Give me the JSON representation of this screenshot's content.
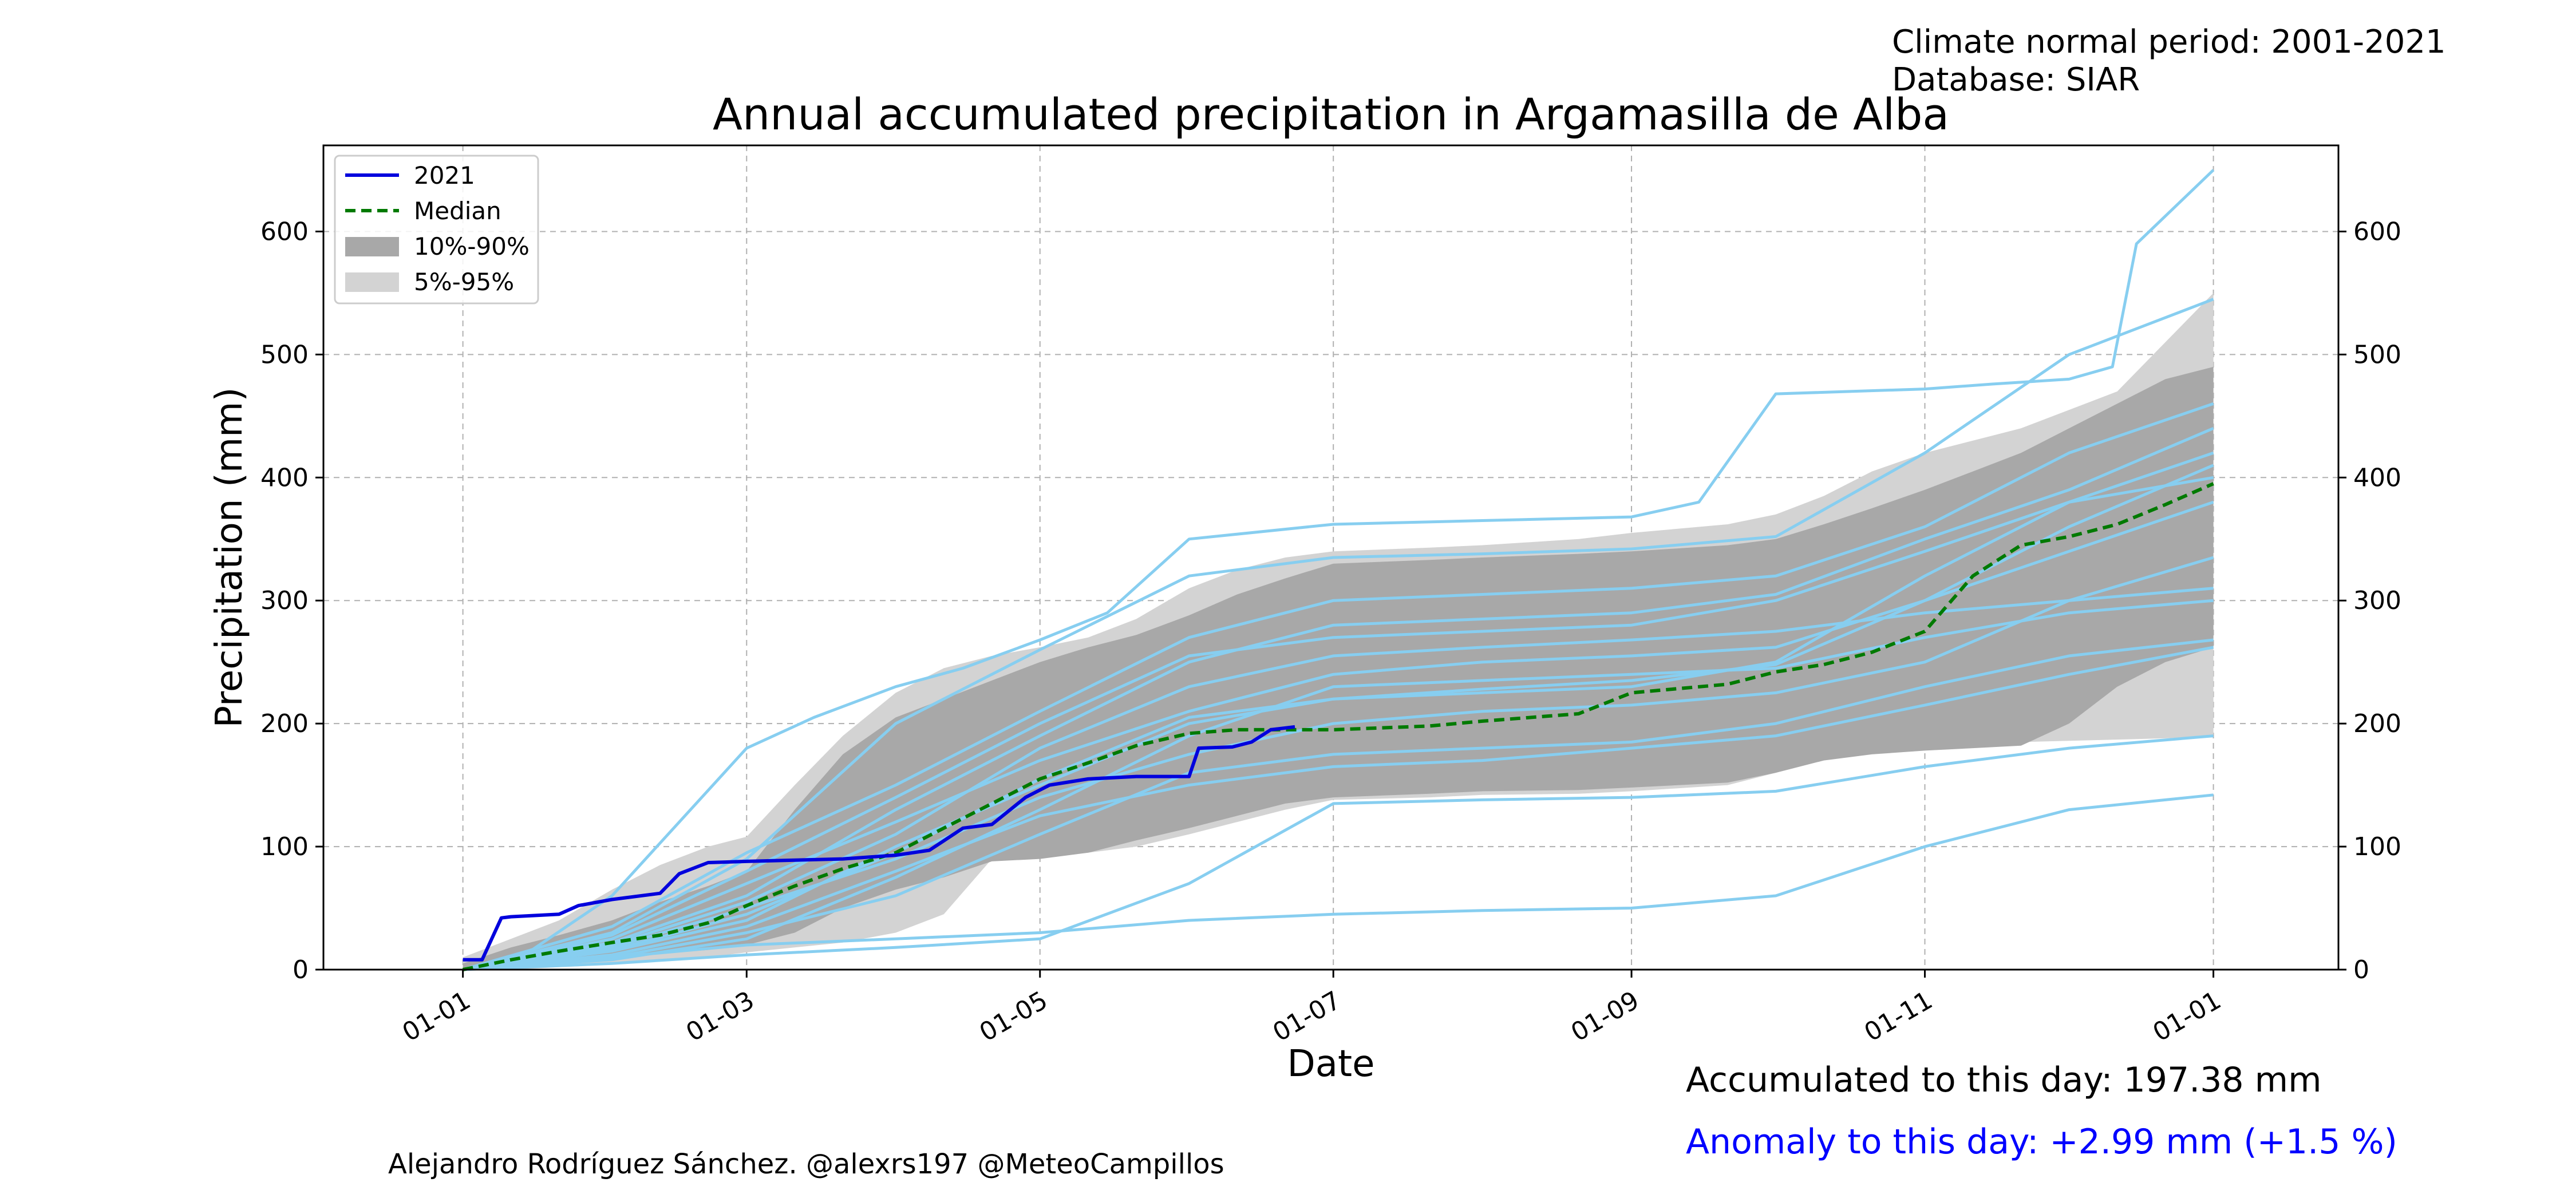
{
  "header": {
    "climate_period": "Climate normal period: 2001-2021",
    "database": "Database: SIAR"
  },
  "footer": {
    "accumulated": "Accumulated to this day: 197.38 mm",
    "anomaly": "Anomaly to this day: +2.99 mm (+1.5 %)",
    "author": "Alejandro Rodríguez Sánchez. @alexrs197 @MeteoCampillos"
  },
  "colors": {
    "current_year": "#0000dd",
    "median": "#007a00",
    "band_10_90": "#a8a8a8",
    "band_5_95": "#d3d3d3",
    "historical_years": "#87cef0",
    "anomaly_text": "#0000ff",
    "grid": "#b0b0b0"
  },
  "chart_data": {
    "type": "line",
    "title": "Annual accumulated precipitation in Argamasilla de Alba",
    "xlabel": "Date",
    "ylabel": "Precipitation (mm)",
    "x_ticks": [
      "01-01",
      "01-03",
      "01-05",
      "01-07",
      "01-09",
      "01-11",
      "01-01"
    ],
    "x_tick_dates": [
      "01-01",
      "03-01",
      "05-01",
      "07-01",
      "09-01",
      "11-01",
      "12-31"
    ],
    "y_ticks": [
      0,
      100,
      200,
      300,
      400,
      500,
      600
    ],
    "ylim": [
      0,
      670
    ],
    "xlim": [
      "12-03",
      "01-26"
    ],
    "grid": true,
    "right_axis": true,
    "legend_position": "upper-left",
    "legend": [
      "2021",
      "Median",
      "10%-90%",
      "5%-95%"
    ],
    "bands": [
      {
        "name": "5%-95%",
        "x": [
          "01-01",
          "01-11",
          "01-21",
          "02-01",
          "02-11",
          "02-21",
          "03-01",
          "03-11",
          "03-21",
          "04-01",
          "04-11",
          "04-21",
          "05-01",
          "05-11",
          "05-21",
          "06-01",
          "06-11",
          "06-21",
          "07-01",
          "07-21",
          "08-01",
          "08-21",
          "09-01",
          "09-21",
          "10-01",
          "10-11",
          "10-21",
          "11-01",
          "11-11",
          "11-21",
          "12-01",
          "12-11",
          "12-21",
          "12-31"
        ],
        "lower": [
          0,
          0,
          2,
          4,
          7,
          10,
          14,
          18,
          22,
          30,
          45,
          90,
          92,
          95,
          100,
          110,
          120,
          130,
          138,
          140,
          142,
          143,
          145,
          150,
          160,
          175,
          180,
          182,
          184,
          185,
          186,
          187,
          188,
          190
        ],
        "upper": [
          10,
          25,
          40,
          65,
          85,
          100,
          108,
          150,
          190,
          225,
          245,
          255,
          262,
          270,
          285,
          310,
          325,
          335,
          340,
          343,
          345,
          350,
          355,
          362,
          370,
          385,
          405,
          420,
          430,
          440,
          455,
          470,
          510,
          550
        ]
      },
      {
        "name": "10%-90%",
        "x": [
          "01-01",
          "01-11",
          "01-21",
          "02-01",
          "02-11",
          "02-21",
          "03-01",
          "03-11",
          "03-21",
          "04-01",
          "04-11",
          "04-21",
          "05-01",
          "05-11",
          "05-21",
          "06-01",
          "06-11",
          "06-21",
          "07-01",
          "07-21",
          "08-01",
          "08-21",
          "09-01",
          "09-21",
          "10-01",
          "10-11",
          "10-21",
          "11-01",
          "11-11",
          "11-21",
          "12-01",
          "12-11",
          "12-21",
          "12-31"
        ],
        "lower": [
          0,
          3,
          6,
          9,
          13,
          16,
          20,
          30,
          50,
          65,
          75,
          88,
          90,
          95,
          105,
          115,
          125,
          135,
          140,
          143,
          145,
          146,
          148,
          152,
          160,
          170,
          175,
          178,
          180,
          182,
          200,
          230,
          250,
          262
        ],
        "upper": [
          5,
          18,
          28,
          40,
          55,
          68,
          80,
          130,
          175,
          205,
          220,
          235,
          250,
          262,
          272,
          288,
          305,
          318,
          330,
          333,
          335,
          338,
          340,
          345,
          350,
          362,
          375,
          390,
          405,
          420,
          440,
          460,
          480,
          490
        ]
      }
    ],
    "series": [
      {
        "name": "2021",
        "x": [
          "01-01",
          "01-05",
          "01-07",
          "01-09",
          "01-11",
          "01-21",
          "01-25",
          "02-01",
          "02-11",
          "02-15",
          "02-21",
          "03-01",
          "03-11",
          "03-21",
          "04-01",
          "04-08",
          "04-15",
          "04-21",
          "04-28",
          "05-03",
          "05-11",
          "05-21",
          "06-01",
          "06-03",
          "06-10",
          "06-14",
          "06-18",
          "06-23"
        ],
        "values": [
          8,
          8,
          25,
          42,
          43,
          45,
          52,
          57,
          62,
          78,
          87,
          88,
          89,
          90,
          93,
          97,
          115,
          118,
          140,
          150,
          155,
          157,
          157,
          180,
          181,
          185,
          195,
          197.38
        ]
      },
      {
        "name": "Median",
        "x": [
          "01-01",
          "01-11",
          "01-21",
          "02-01",
          "02-11",
          "02-21",
          "03-01",
          "03-11",
          "03-21",
          "04-01",
          "04-11",
          "04-21",
          "05-01",
          "05-11",
          "05-21",
          "06-01",
          "06-11",
          "06-21",
          "07-01",
          "07-21",
          "08-01",
          "08-21",
          "09-01",
          "09-21",
          "10-01",
          "10-11",
          "10-21",
          "11-01",
          "11-11",
          "11-21",
          "12-01",
          "12-11",
          "12-21",
          "12-31"
        ],
        "values": [
          0,
          8,
          15,
          22,
          28,
          38,
          52,
          68,
          82,
          95,
          115,
          135,
          155,
          168,
          182,
          192,
          195,
          195,
          195,
          198,
          202,
          208,
          225,
          232,
          242,
          248,
          258,
          275,
          320,
          345,
          352,
          362,
          378,
          395
        ]
      }
    ],
    "historical_years": [
      {
        "x": [
          "01-01",
          "01-15",
          "02-01",
          "03-01",
          "03-15",
          "04-01",
          "04-15",
          "05-01",
          "05-15",
          "06-01",
          "07-01",
          "08-01",
          "09-01",
          "09-15",
          "10-01",
          "11-01",
          "11-15",
          "12-01",
          "12-10",
          "12-15",
          "12-31"
        ],
        "values": [
          0,
          15,
          60,
          180,
          205,
          230,
          245,
          268,
          290,
          350,
          362,
          365,
          368,
          380,
          468,
          472,
          476,
          480,
          490,
          590,
          650
        ]
      },
      {
        "x": [
          "01-01",
          "02-01",
          "03-01",
          "04-01",
          "05-01",
          "06-01",
          "07-01",
          "08-01",
          "09-01",
          "10-01",
          "11-01",
          "12-01",
          "12-31"
        ],
        "values": [
          0,
          10,
          20,
          25,
          30,
          40,
          45,
          48,
          50,
          60,
          100,
          130,
          142
        ]
      },
      {
        "x": [
          "01-01",
          "02-01",
          "03-01",
          "04-01",
          "05-01",
          "06-01",
          "07-01",
          "08-01",
          "09-01",
          "10-01",
          "11-01",
          "12-01",
          "12-31"
        ],
        "values": [
          0,
          30,
          90,
          200,
          260,
          320,
          335,
          338,
          342,
          352,
          420,
          500,
          545
        ]
      },
      {
        "x": [
          "01-01",
          "02-01",
          "03-01",
          "04-01",
          "05-01",
          "06-01",
          "07-01",
          "08-01",
          "09-01",
          "10-01",
          "11-01",
          "12-01",
          "12-31"
        ],
        "values": [
          0,
          5,
          12,
          18,
          25,
          70,
          135,
          138,
          140,
          145,
          165,
          180,
          190
        ]
      },
      {
        "x": [
          "01-01",
          "02-01",
          "03-01",
          "04-01",
          "05-01",
          "06-01",
          "07-01",
          "08-01",
          "09-01",
          "10-01",
          "11-01",
          "12-01",
          "12-31"
        ],
        "values": [
          0,
          20,
          55,
          110,
          180,
          230,
          255,
          262,
          268,
          275,
          290,
          300,
          310
        ]
      },
      {
        "x": [
          "01-01",
          "02-01",
          "03-01",
          "04-01",
          "05-01",
          "06-01",
          "07-01",
          "08-01",
          "09-01",
          "10-01",
          "11-01",
          "12-01",
          "12-31"
        ],
        "values": [
          0,
          15,
          40,
          100,
          150,
          200,
          220,
          225,
          230,
          250,
          320,
          380,
          420
        ]
      },
      {
        "x": [
          "01-01",
          "02-01",
          "03-01",
          "04-01",
          "05-01",
          "06-01",
          "07-01",
          "08-01",
          "09-01",
          "10-01",
          "11-01",
          "12-01",
          "12-31"
        ],
        "values": [
          0,
          25,
          70,
          120,
          170,
          210,
          240,
          250,
          255,
          262,
          300,
          340,
          380
        ]
      },
      {
        "x": [
          "01-01",
          "02-01",
          "03-01",
          "04-01",
          "05-01",
          "06-01",
          "07-01",
          "08-01",
          "09-01",
          "10-01",
          "11-01",
          "12-01",
          "12-31"
        ],
        "values": [
          0,
          10,
          30,
          60,
          110,
          160,
          175,
          180,
          185,
          200,
          230,
          255,
          268
        ]
      },
      {
        "x": [
          "01-01",
          "02-01",
          "03-01",
          "04-01",
          "05-01",
          "06-01",
          "07-01",
          "08-01",
          "09-01",
          "10-01",
          "11-01",
          "12-01",
          "12-31"
        ],
        "values": [
          0,
          35,
          95,
          150,
          210,
          270,
          300,
          305,
          310,
          320,
          360,
          420,
          460
        ]
      },
      {
        "x": [
          "01-01",
          "02-01",
          "03-01",
          "04-01",
          "05-01",
          "06-01",
          "07-01",
          "08-01",
          "09-01",
          "10-01",
          "11-01",
          "12-01",
          "12-31"
        ],
        "values": [
          0,
          18,
          50,
          90,
          140,
          175,
          200,
          210,
          215,
          225,
          250,
          300,
          335
        ]
      },
      {
        "x": [
          "01-01",
          "02-01",
          "03-01",
          "04-01",
          "05-01",
          "06-01",
          "07-01",
          "08-01",
          "09-01",
          "10-01",
          "11-01",
          "12-01",
          "12-31"
        ],
        "values": [
          0,
          8,
          25,
          75,
          130,
          190,
          230,
          235,
          240,
          245,
          270,
          290,
          300
        ]
      },
      {
        "x": [
          "01-01",
          "02-01",
          "03-01",
          "04-01",
          "05-01",
          "06-01",
          "07-01",
          "08-01",
          "09-01",
          "10-01",
          "11-01",
          "12-01",
          "12-31"
        ],
        "values": [
          0,
          22,
          60,
          130,
          190,
          250,
          280,
          285,
          290,
          305,
          350,
          390,
          440
        ]
      },
      {
        "x": [
          "01-01",
          "02-01",
          "03-01",
          "04-01",
          "05-01",
          "06-01",
          "07-01",
          "08-01",
          "09-01",
          "10-01",
          "11-01",
          "12-01",
          "12-31"
        ],
        "values": [
          0,
          12,
          35,
          80,
          125,
          150,
          165,
          170,
          180,
          190,
          215,
          240,
          262
        ]
      },
      {
        "x": [
          "01-01",
          "02-01",
          "03-01",
          "04-01",
          "05-01",
          "06-01",
          "07-01",
          "08-01",
          "09-01",
          "10-01",
          "11-01",
          "12-01",
          "12-31"
        ],
        "values": [
          0,
          28,
          80,
          140,
          200,
          255,
          270,
          275,
          280,
          300,
          340,
          380,
          400
        ]
      },
      {
        "x": [
          "01-01",
          "02-01",
          "03-01",
          "04-01",
          "05-01",
          "06-01",
          "07-01",
          "08-01",
          "09-01",
          "10-01",
          "11-01",
          "12-01",
          "12-31"
        ],
        "values": [
          0,
          16,
          45,
          95,
          155,
          205,
          220,
          228,
          235,
          248,
          300,
          360,
          410
        ]
      }
    ]
  }
}
